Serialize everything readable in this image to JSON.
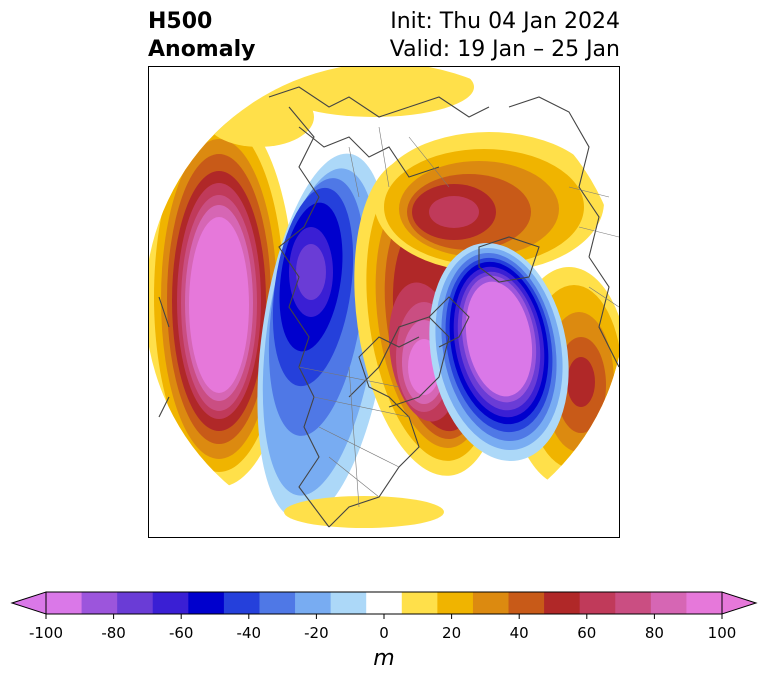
{
  "header": {
    "title_line1": "H500",
    "title_line2": "Anomaly",
    "init_text": "Init: Thu 04 Jan 2024",
    "valid_text": "Valid: 19 Jan – 25 Jan"
  },
  "colorbar": {
    "units": "m",
    "ticks": [
      "-100",
      "-80",
      "-60",
      "-40",
      "-20",
      "0",
      "20",
      "40",
      "60",
      "80",
      "100"
    ],
    "colors": [
      "#da78e8",
      "#9c55dc",
      "#6a3cd6",
      "#3a1fd4",
      "#0000cd",
      "#2540db",
      "#4f78e6",
      "#78acf2",
      "#acd8f8",
      "#ffffff",
      "#ffe04a",
      "#f0b400",
      "#dc8a10",
      "#c85a18",
      "#b02828",
      "#c03a5a",
      "#ca4e82",
      "#d666b4",
      "#e678da"
    ],
    "under_color": "#da78e8",
    "over_color": "#e678da"
  }
}
